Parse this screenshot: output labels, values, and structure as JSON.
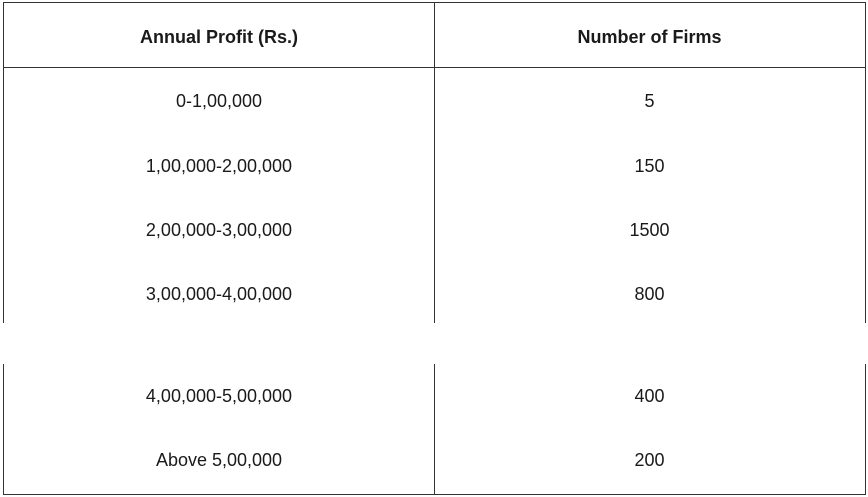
{
  "table": {
    "headers": {
      "profit": "Annual Profit (Rs.)",
      "firms": "Number of Firms"
    },
    "rows": [
      {
        "profit": "0-1,00,000",
        "firms": "5"
      },
      {
        "profit": "1,00,000-2,00,000",
        "firms": "150"
      },
      {
        "profit": "2,00,000-3,00,000",
        "firms": "1500"
      },
      {
        "profit": "3,00,000-4,00,000",
        "firms": "800"
      },
      {
        "profit": "4,00,000-5,00,000",
        "firms": "400"
      },
      {
        "profit": "Above 5,00,000",
        "firms": "200"
      }
    ]
  }
}
